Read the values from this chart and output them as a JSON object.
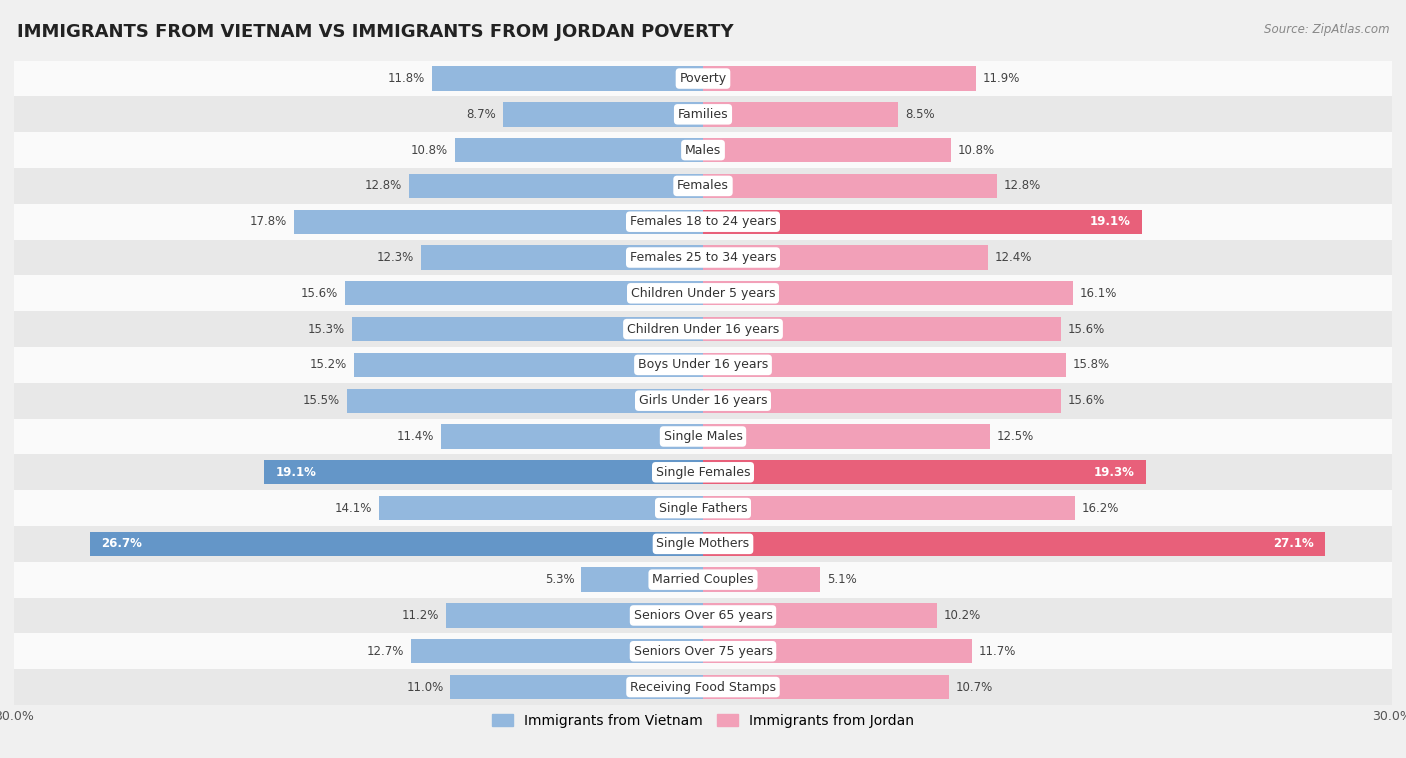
{
  "title": "IMMIGRANTS FROM VIETNAM VS IMMIGRANTS FROM JORDAN POVERTY",
  "source": "Source: ZipAtlas.com",
  "categories": [
    "Poverty",
    "Families",
    "Males",
    "Females",
    "Females 18 to 24 years",
    "Females 25 to 34 years",
    "Children Under 5 years",
    "Children Under 16 years",
    "Boys Under 16 years",
    "Girls Under 16 years",
    "Single Males",
    "Single Females",
    "Single Fathers",
    "Single Mothers",
    "Married Couples",
    "Seniors Over 65 years",
    "Seniors Over 75 years",
    "Receiving Food Stamps"
  ],
  "vietnam_values": [
    11.8,
    8.7,
    10.8,
    12.8,
    17.8,
    12.3,
    15.6,
    15.3,
    15.2,
    15.5,
    11.4,
    19.1,
    14.1,
    26.7,
    5.3,
    11.2,
    12.7,
    11.0
  ],
  "jordan_values": [
    11.9,
    8.5,
    10.8,
    12.8,
    19.1,
    12.4,
    16.1,
    15.6,
    15.8,
    15.6,
    12.5,
    19.3,
    16.2,
    27.1,
    5.1,
    10.2,
    11.7,
    10.7
  ],
  "vietnam_color_normal": "#93b8de",
  "jordan_color_normal": "#f2a0b8",
  "vietnam_color_highlight": "#6496c8",
  "jordan_color_highlight": "#e8607a",
  "background_color": "#f0f0f0",
  "row_color_light": "#fafafa",
  "row_color_dark": "#e8e8e8",
  "axis_limit": 30.0,
  "highlight_threshold": 18.5,
  "legend_vietnam": "Immigrants from Vietnam",
  "legend_jordan": "Immigrants from Jordan",
  "title_fontsize": 13,
  "label_fontsize": 9,
  "value_fontsize": 8.5
}
